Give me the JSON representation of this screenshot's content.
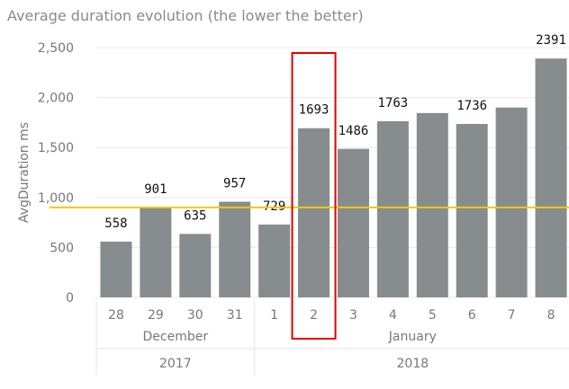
{
  "chart_data": {
    "type": "bar",
    "title": "Average duration evolution (the lower the better)",
    "ylabel": "AvgDuration ms",
    "xlabel": "",
    "ylim": [
      0,
      2500
    ],
    "yticks": [
      "0",
      "500",
      "1,000",
      "1,500",
      "2,000",
      "2,500"
    ],
    "grid": true,
    "categories": [
      "28",
      "29",
      "30",
      "31",
      "1",
      "2",
      "3",
      "4",
      "5",
      "6",
      "7",
      "8"
    ],
    "values": [
      558,
      901,
      635,
      957,
      729,
      1693,
      1486,
      1763,
      1845,
      1736,
      1900,
      2391
    ],
    "data_labels": [
      "558",
      "901",
      "635",
      "957",
      "729",
      "1693",
      "1486",
      "1763",
      null,
      "1736",
      null,
      "2391"
    ],
    "months": [
      {
        "label": "December",
        "span": 4
      },
      {
        "label": "January",
        "span": 8
      }
    ],
    "years": [
      {
        "label": "2017",
        "span": 4
      },
      {
        "label": "2018",
        "span": 8
      }
    ],
    "reference_line": {
      "value": 900,
      "color": "#f2c80f"
    },
    "highlight_category": "2",
    "colors": {
      "bar": "#878d8e",
      "highlight_box": "#e00000",
      "grid": "#e8e8e8"
    }
  }
}
